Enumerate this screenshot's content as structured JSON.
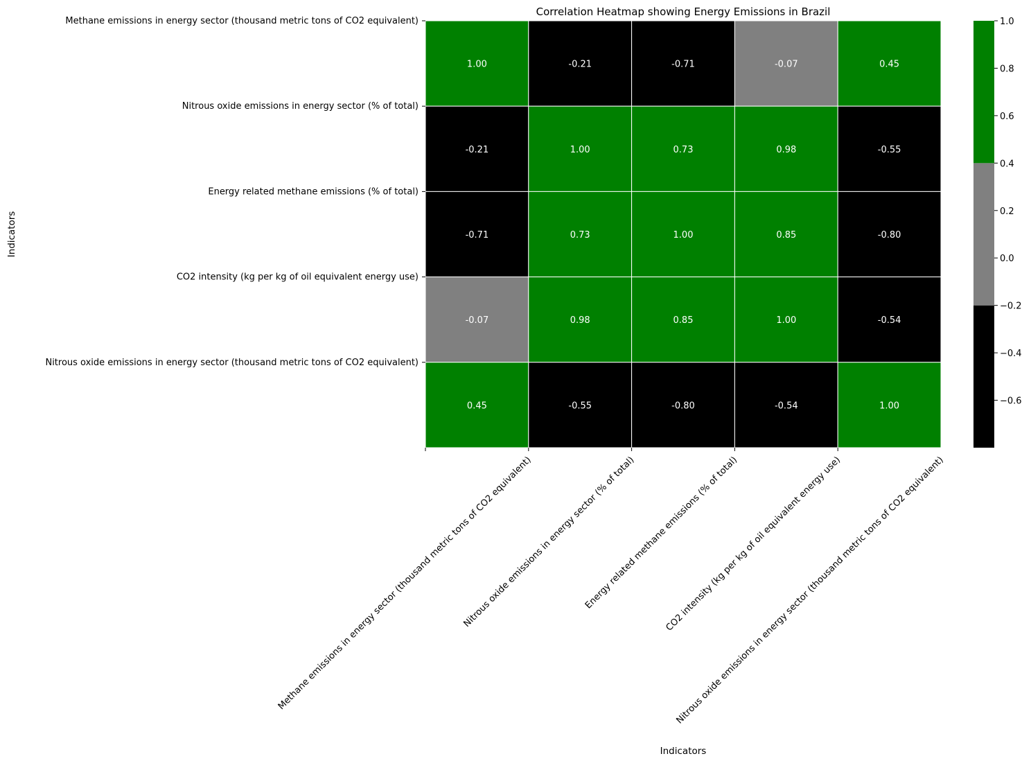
{
  "chart_data": {
    "type": "heatmap",
    "title": "Correlation Heatmap showing Energy Emissions in Brazil",
    "xlabel": "Indicators",
    "ylabel": "Indicators",
    "rows": [
      "Methane emissions in energy sector (thousand metric tons of CO2 equivalent)",
      "Nitrous oxide emissions in energy sector (% of total)",
      "Energy related methane emissions (% of total)",
      "CO2 intensity (kg per kg of oil equivalent energy use)",
      "Nitrous oxide emissions in energy sector (thousand metric tons of CO2 equivalent)"
    ],
    "columns": [
      "Methane emissions in energy sector (thousand metric tons of CO2 equivalent)",
      "Nitrous oxide emissions in energy sector (% of total)",
      "Energy related methane emissions (% of total)",
      "CO2 intensity (kg per kg of oil equivalent energy use)",
      "Nitrous oxide emissions in energy sector (thousand metric tons of CO2 equivalent)"
    ],
    "values": [
      [
        1.0,
        -0.21,
        -0.71,
        -0.07,
        0.45
      ],
      [
        -0.21,
        1.0,
        0.73,
        0.98,
        -0.55
      ],
      [
        -0.71,
        0.73,
        1.0,
        0.85,
        -0.8
      ],
      [
        -0.07,
        0.98,
        0.85,
        1.0,
        -0.54
      ],
      [
        0.45,
        -0.55,
        -0.8,
        -0.54,
        1.0
      ]
    ],
    "value_format": "0.00",
    "colorbar": {
      "range": [
        -0.8,
        1.0
      ],
      "ticks": [
        "1.0",
        "0.8",
        "0.6",
        "0.4",
        "0.2",
        "0.0",
        "−0.2",
        "−0.4",
        "−0.6"
      ],
      "bins": [
        {
          "from": -0.8,
          "to": -0.2,
          "color": "#000000"
        },
        {
          "from": -0.2,
          "to": 0.4,
          "color": "#808080"
        },
        {
          "from": 0.4,
          "to": 1.0,
          "color": "#008000"
        }
      ]
    },
    "cell_text_color": "#ffffff",
    "grid_line_color": "#ffffff"
  }
}
